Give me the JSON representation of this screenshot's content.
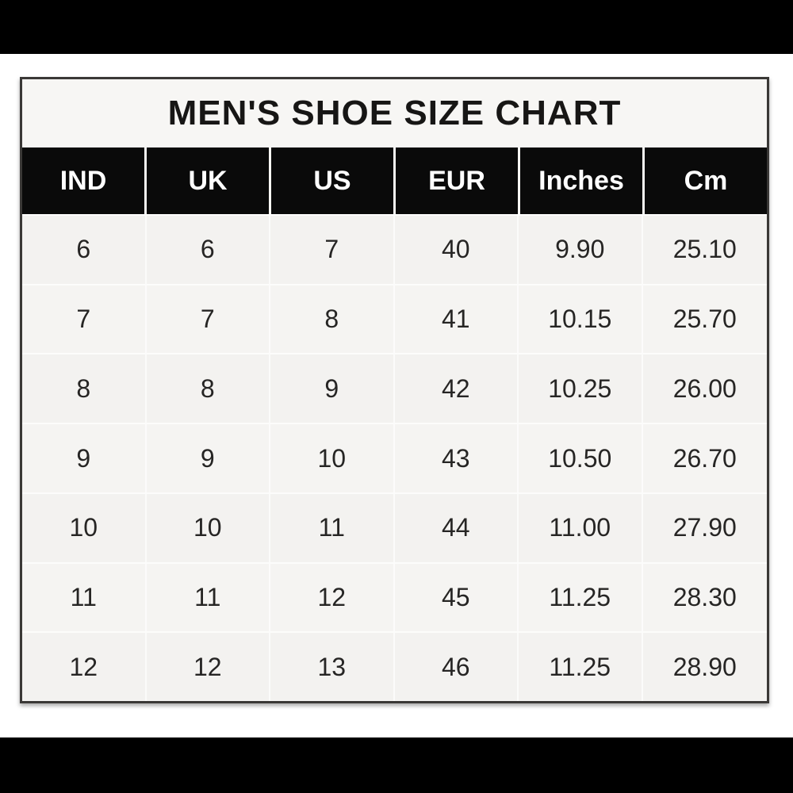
{
  "title": "MEN'S SHOE SIZE CHART",
  "colors": {
    "page_background": "#ffffff",
    "letterbox_bar": "#000000",
    "table_background": "#f4f3f1",
    "table_border": "#3a3836",
    "header_cell_background": "#0a0a0a",
    "header_text": "#ffffff",
    "body_text": "#262524"
  },
  "chart_data": {
    "type": "table",
    "title": "MEN'S SHOE SIZE CHART",
    "columns": [
      "IND",
      "UK",
      "US",
      "EUR",
      "Inches",
      "Cm"
    ],
    "rows": [
      [
        "6",
        "6",
        "7",
        "40",
        "9.90",
        "25.10"
      ],
      [
        "7",
        "7",
        "8",
        "41",
        "10.15",
        "25.70"
      ],
      [
        "8",
        "8",
        "9",
        "42",
        "10.25",
        "26.00"
      ],
      [
        "9",
        "9",
        "10",
        "43",
        "10.50",
        "26.70"
      ],
      [
        "10",
        "10",
        "11",
        "44",
        "11.00",
        "27.90"
      ],
      [
        "11",
        "11",
        "12",
        "45",
        "11.25",
        "28.30"
      ],
      [
        "12",
        "12",
        "13",
        "46",
        "11.25",
        "28.90"
      ]
    ],
    "layout": {
      "legend": "none",
      "grid": "subtle white separators",
      "header_style": "black cells, white bold text",
      "alignment": "center"
    }
  }
}
